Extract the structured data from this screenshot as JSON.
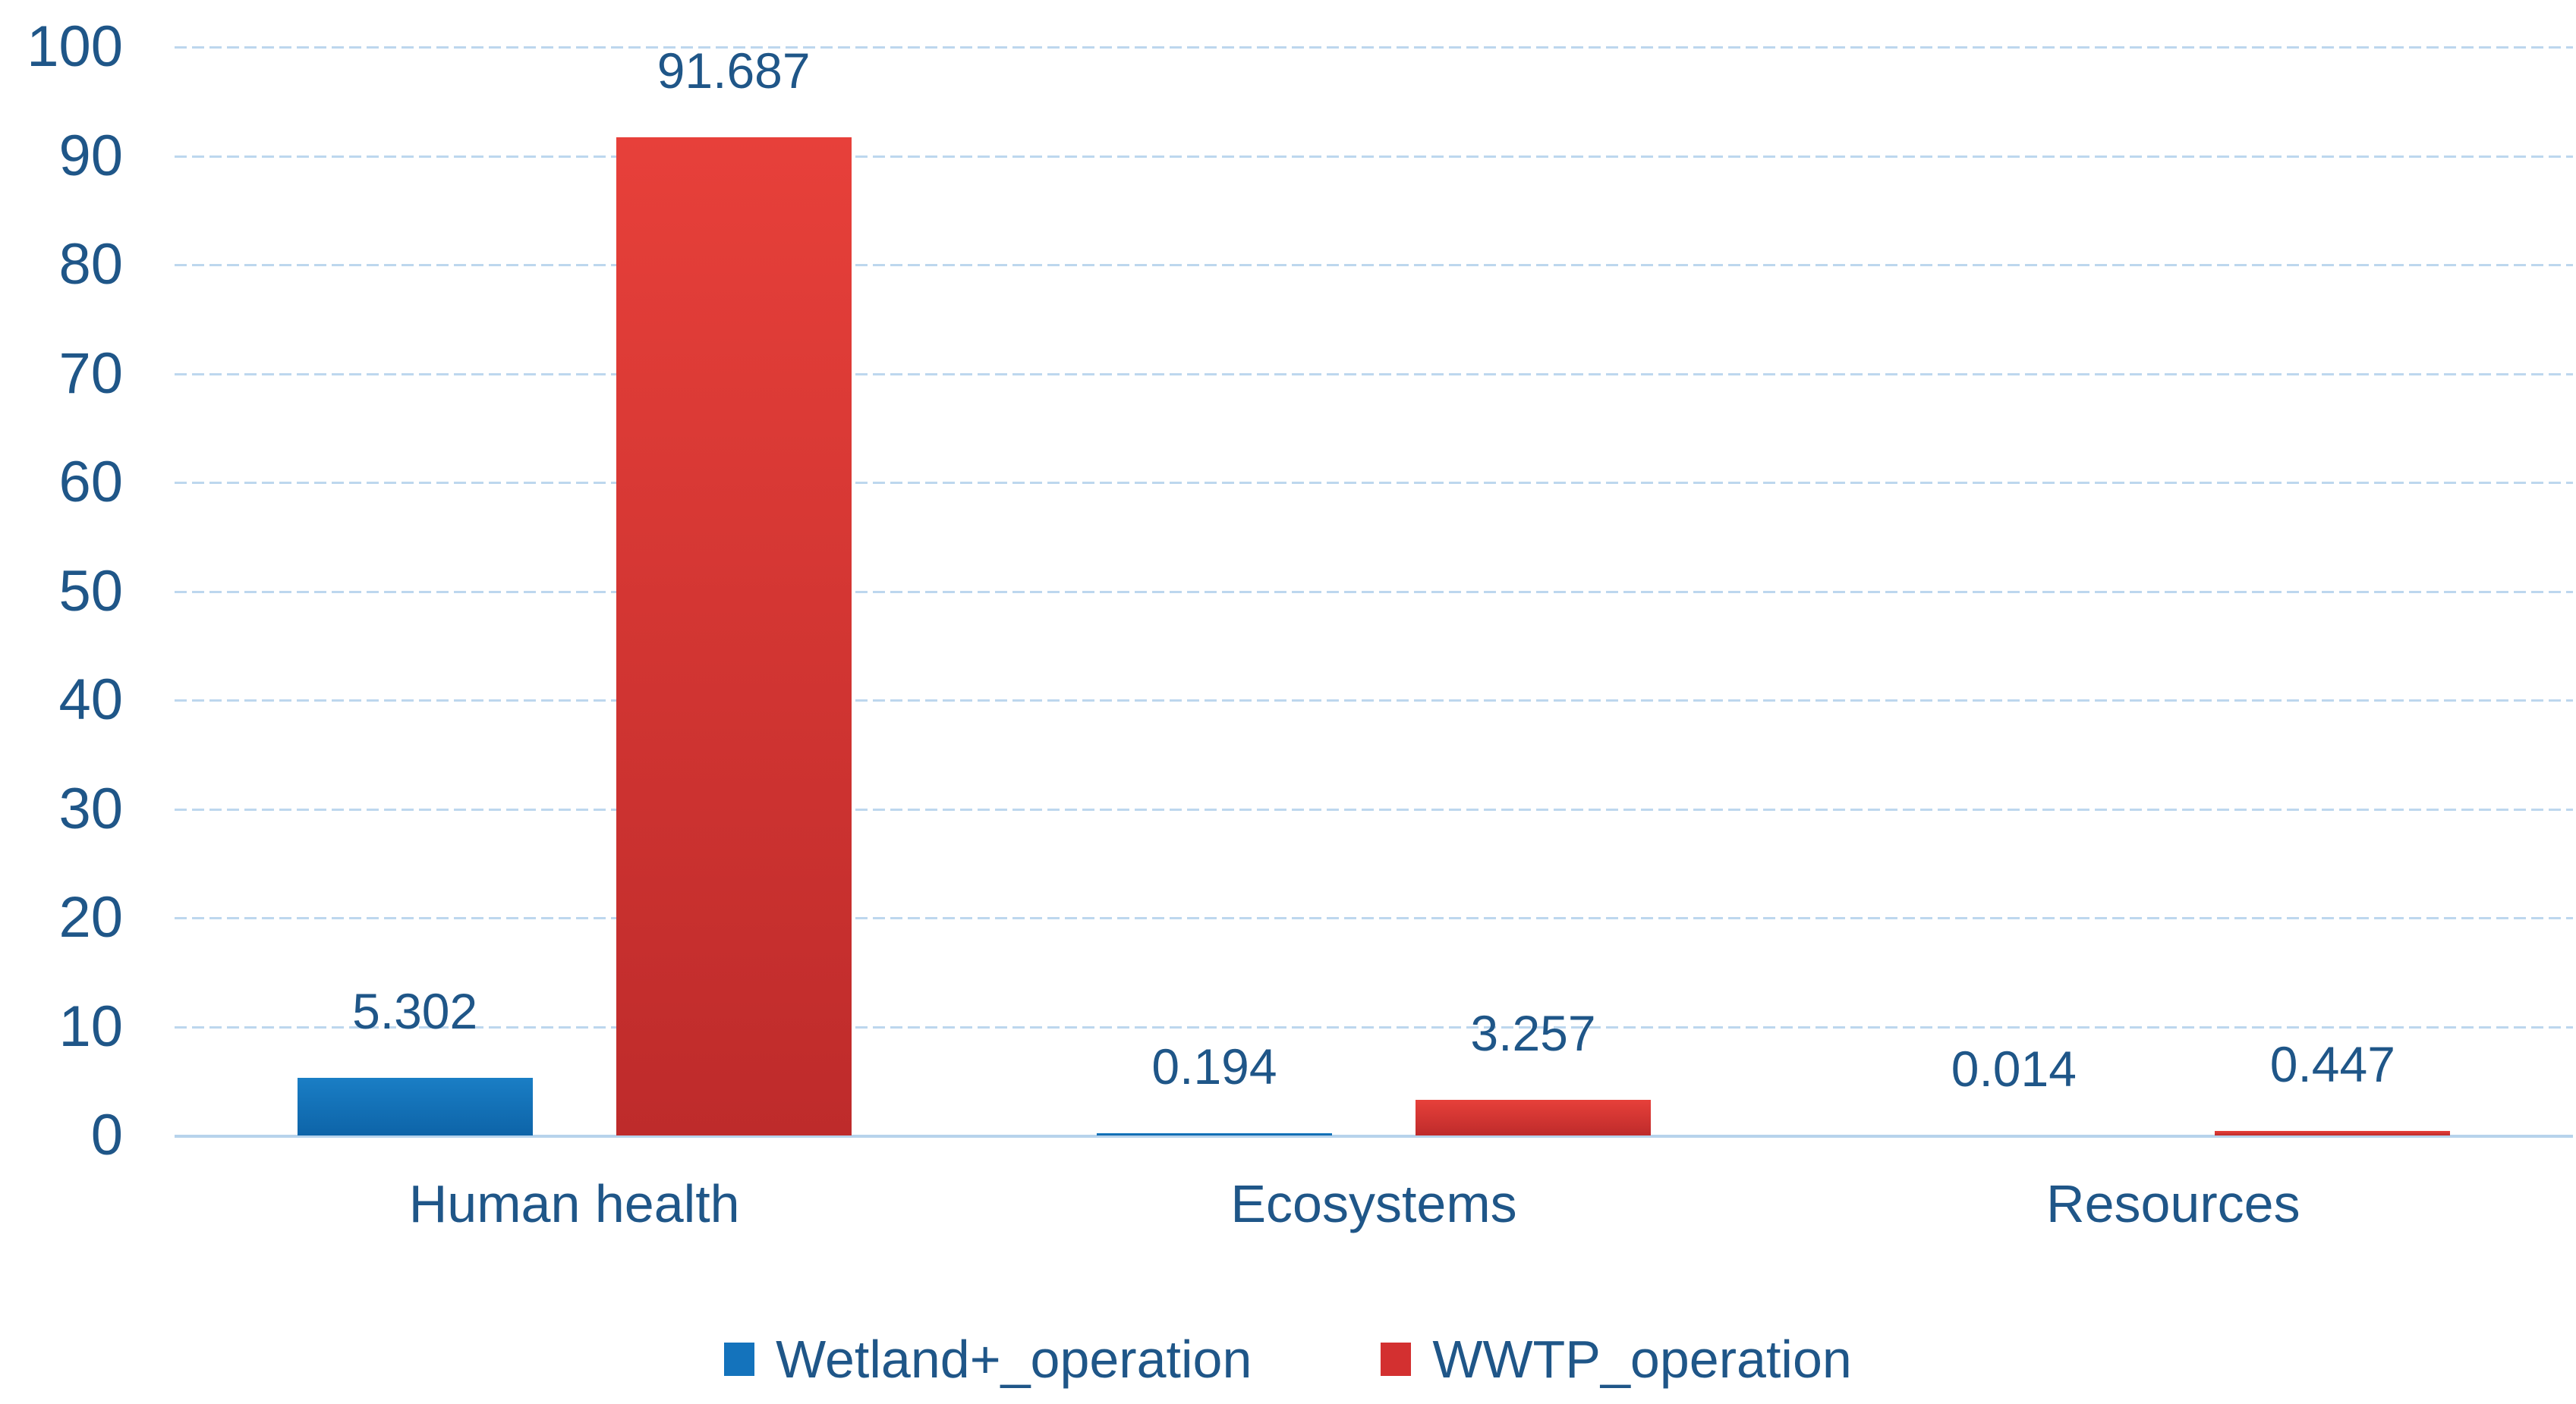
{
  "chart_data": {
    "type": "bar",
    "title": "",
    "xlabel": "",
    "ylabel": "",
    "categories": [
      "Human health",
      "Ecosystems",
      "Resources"
    ],
    "series": [
      {
        "name": "Wetland+_operation",
        "color": "#1473bc",
        "gradient": [
          "#1a7ec5",
          "#0d64a8"
        ],
        "values": [
          5.302,
          0.194,
          0.014
        ],
        "labels": [
          "5.302",
          "0.194",
          "0.014"
        ]
      },
      {
        "name": "WWTP_operation",
        "color": "#d33030",
        "gradient": [
          "#e7403a",
          "#be2b2b"
        ],
        "values": [
          91.687,
          3.257,
          0.447
        ],
        "labels": [
          "91.687",
          "3.257",
          "0.447"
        ]
      }
    ],
    "ylim": [
      0,
      100
    ],
    "yticks": [
      0,
      10,
      20,
      30,
      40,
      50,
      60,
      70,
      80,
      90,
      100
    ],
    "grid": true,
    "gridline_color": "#bdd7ee",
    "text_color": "#1f5688",
    "legend_position": "bottom"
  }
}
